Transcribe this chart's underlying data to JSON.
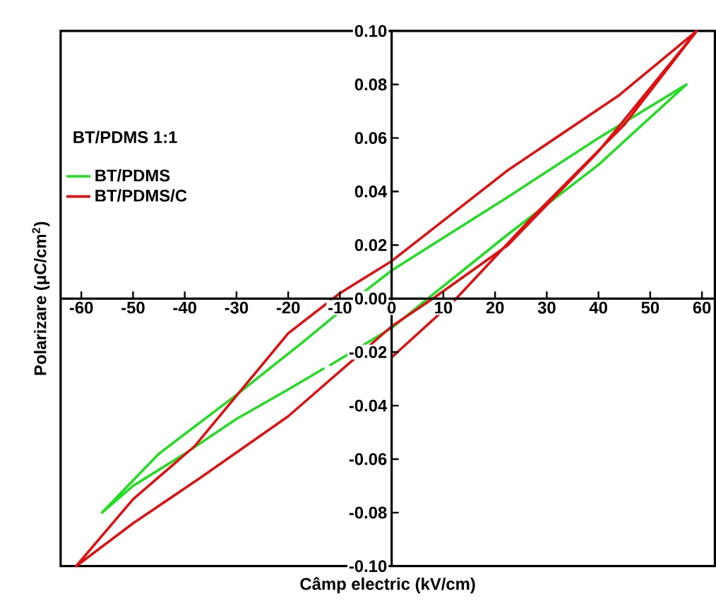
{
  "chart_data": {
    "type": "line",
    "xlabel": "Câmp electric (kV/cm)",
    "ylabel": "Polarizare (μC/cm$^{2}$)",
    "legend_title": "BT/PDMS 1:1",
    "xlim": [
      -64,
      62.5
    ],
    "ylim": [
      -0.1,
      0.1
    ],
    "xticks": [
      -60,
      -50,
      -40,
      -30,
      -20,
      -10,
      0,
      10,
      20,
      30,
      40,
      50,
      60
    ],
    "yticks": [
      {
        "value": -0.1,
        "label": "-0.10"
      },
      {
        "value": -0.08,
        "label": "-0.08"
      },
      {
        "value": -0.06,
        "label": "-0.06"
      },
      {
        "value": -0.04,
        "label": "-0.04"
      },
      {
        "value": -0.02,
        "label": "-0.02"
      },
      {
        "value": 0,
        "label": "0.00"
      },
      {
        "value": 0.02,
        "label": "0.02"
      },
      {
        "value": 0.04,
        "label": "0.04"
      },
      {
        "value": 0.06,
        "label": "0.06"
      },
      {
        "value": 0.08,
        "label": "0.08"
      },
      {
        "value": 0.1,
        "label": "0.10"
      }
    ],
    "legend": "left",
    "grid": false,
    "marker": "none",
    "line_style": "solid",
    "series": [
      {
        "name": "BT/PDMS",
        "color": "#22dd22",
        "x": [
          -12,
          0,
          7,
          22.5,
          40,
          57,
          40,
          22.5,
          0,
          -7,
          -17,
          -30,
          -45,
          -56,
          -50,
          -40,
          -30,
          -20,
          -13
        ],
        "values": [
          -0.025,
          -0.011,
          0,
          0.024,
          0.05,
          0.08,
          0.06,
          0.038,
          0.0105,
          0,
          -0.016,
          -0.036,
          -0.058,
          -0.08,
          -0.07,
          -0.058,
          -0.045,
          -0.034,
          -0.026
        ]
      },
      {
        "name": "BT/PDMS/C",
        "color": "#dd1111",
        "x": [
          0,
          12.5,
          27,
          45,
          59,
          44,
          22.5,
          0,
          -10,
          -20,
          -38,
          -50,
          -61,
          -50,
          -37,
          -20,
          0,
          8,
          22.5,
          40,
          59
        ],
        "values": [
          -0.022,
          0,
          0.03,
          0.065,
          0.1,
          0.076,
          0.048,
          0.014,
          0.002,
          -0.013,
          -0.055,
          -0.075,
          -0.1,
          -0.084,
          -0.067,
          -0.044,
          -0.0104,
          0,
          0.02,
          0.055,
          0.1
        ]
      }
    ]
  }
}
